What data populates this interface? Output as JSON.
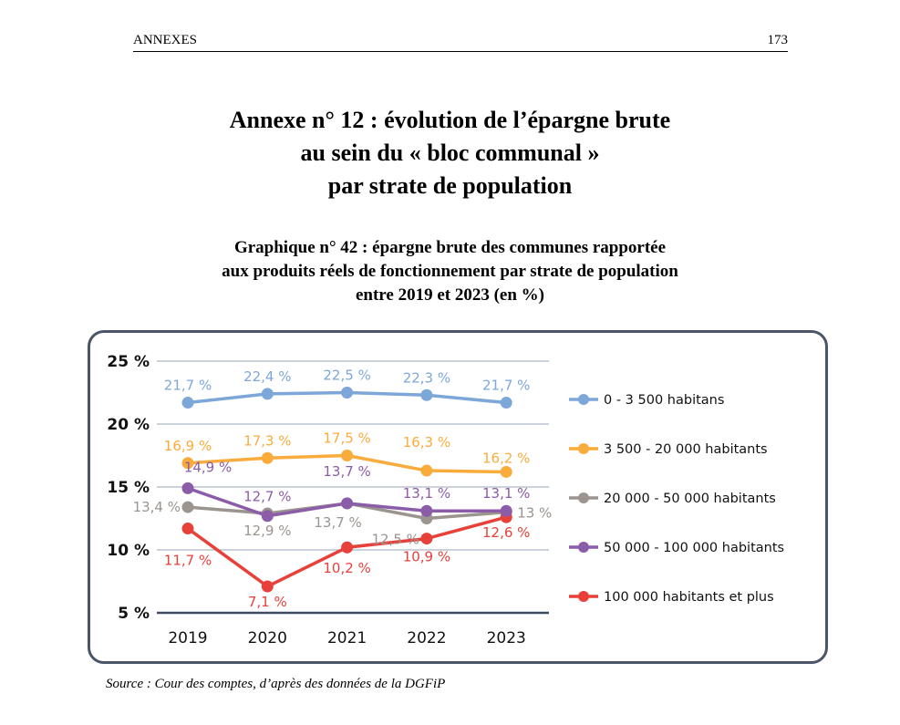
{
  "header": {
    "section": "ANNEXES",
    "page_number": "173"
  },
  "annex_title": [
    "Annexe n° 12 : évolution de l’épargne brute",
    "au sein du « bloc communal »",
    "par strate de population"
  ],
  "figure_title": [
    "Graphique n° 42 : épargne brute des communes rapportée",
    "aux produits réels de fonctionnement par strate de population",
    "entre 2019 et 2023 (en %)"
  ],
  "source": "Source : Cour des comptes, d’après des données de la DGFiP",
  "chart_data": {
    "type": "line",
    "title": "Graphique n° 42 : épargne brute des communes rapportée aux produits réels de fonctionnement par strate de population entre 2019 et 2023 (en %)",
    "xlabel": "",
    "ylabel": "",
    "categories": [
      "2019",
      "2020",
      "2021",
      "2022",
      "2023"
    ],
    "ylim": [
      5,
      25
    ],
    "yticks": [
      5,
      10,
      15,
      20,
      25
    ],
    "ytick_labels": [
      "5 %",
      "10 %",
      "15 %",
      "20 %",
      "25 %"
    ],
    "grid": true,
    "legend_position": "right",
    "series": [
      {
        "name": "0 - 3 500 habitans",
        "color": "#7da7d9",
        "values": [
          21.7,
          22.4,
          22.5,
          22.3,
          21.7
        ],
        "labels": [
          "21,7 %",
          "22,4 %",
          "22,5 %",
          "22,3 %",
          "21,7 %"
        ]
      },
      {
        "name": "3 500 - 20 000 habitants",
        "color": "#f9ac3c",
        "values": [
          16.9,
          17.3,
          17.5,
          16.3,
          16.2
        ],
        "labels": [
          "16,9 %",
          "17,3 %",
          "17,5 %",
          "16,3 %",
          "16,2 %"
        ]
      },
      {
        "name": "20 000 - 50 000 habitants",
        "color": "#9b948f",
        "values": [
          13.4,
          12.9,
          13.7,
          12.5,
          13.0
        ],
        "labels": [
          "13,4 %",
          "12,9 %",
          "13,7 %",
          "12,5 %",
          "13 %"
        ]
      },
      {
        "name": "50 000 - 100 000 habitants",
        "color": "#8b5ca8",
        "values": [
          14.9,
          12.7,
          13.7,
          13.1,
          13.1
        ],
        "labels": [
          "14,9 %",
          "12,7 %",
          "13,7 %",
          "13,1 %",
          "13,1 %"
        ]
      },
      {
        "name": "100 000 habitants et plus",
        "color": "#e8413a",
        "values": [
          11.7,
          7.1,
          10.2,
          10.9,
          12.6
        ],
        "labels": [
          "11,7 %",
          "7,1 %",
          "10,2 %",
          "10,9 %",
          "12,6 %"
        ]
      }
    ]
  }
}
